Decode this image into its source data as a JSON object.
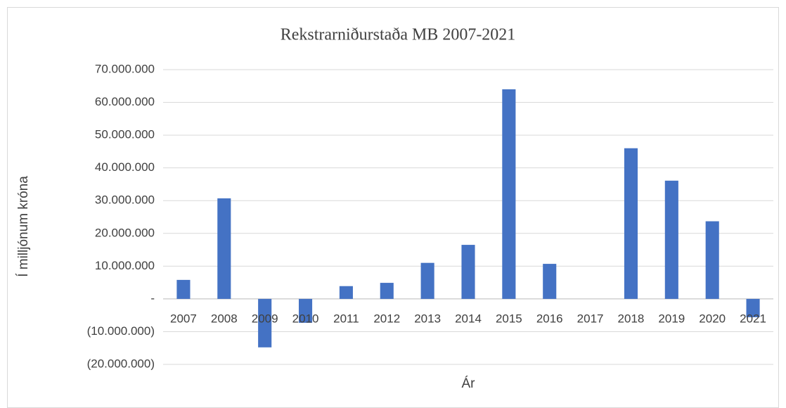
{
  "chart_data": {
    "type": "bar",
    "title": "Rekstrarniðurstaða MB 2007-2021",
    "x_label": "Ár",
    "y_label": "Í milljónum króna",
    "categories": [
      "2007",
      "2008",
      "2009",
      "2010",
      "2011",
      "2012",
      "2013",
      "2014",
      "2015",
      "2016",
      "2017",
      "2018",
      "2019",
      "2020",
      "2021"
    ],
    "values": [
      5800000,
      30700000,
      -14800000,
      -7300000,
      3900000,
      4900000,
      11000000,
      16500000,
      64000000,
      10700000,
      0,
      46000000,
      36100000,
      23700000,
      -5600000
    ],
    "color": "#4472c4",
    "ylim": [
      -20000000,
      70000000
    ],
    "yticks": [
      {
        "value": -20000000,
        "label": "(20.000.000)"
      },
      {
        "value": -10000000,
        "label": "(10.000.000)"
      },
      {
        "value": 0,
        "label": "-"
      },
      {
        "value": 10000000,
        "label": "10.000.000"
      },
      {
        "value": 20000000,
        "label": "20.000.000"
      },
      {
        "value": 30000000,
        "label": "30.000.000"
      },
      {
        "value": 40000000,
        "label": "40.000.000"
      },
      {
        "value": 50000000,
        "label": "50.000.000"
      },
      {
        "value": 60000000,
        "label": "60.000.000"
      },
      {
        "value": 70000000,
        "label": "70.000.000"
      }
    ],
    "grid": true
  }
}
